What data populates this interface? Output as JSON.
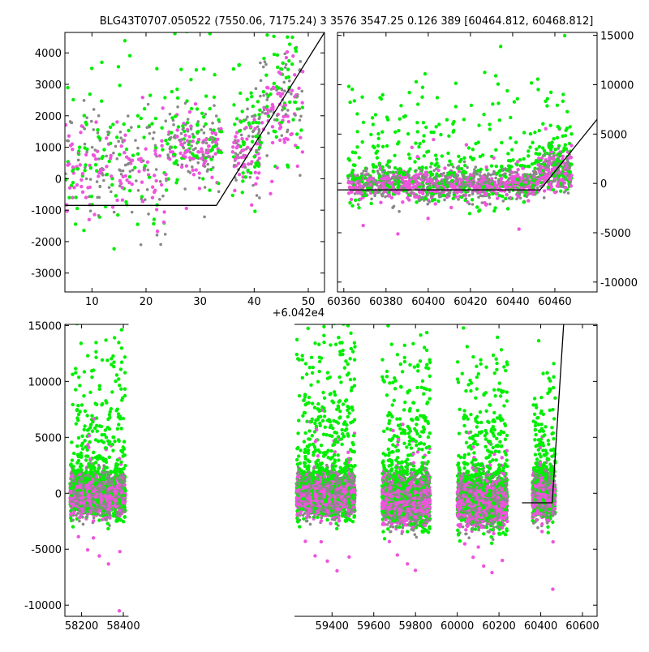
{
  "title": "BLG43T0707.050522 (7550.06, 7175.24)    3 3576 3547.25 0.126 389 [60464.812, 60468.812]",
  "colors": {
    "green": "#00ee00",
    "gray": "#888888",
    "magenta": "#ee55dd",
    "model": "#000000"
  },
  "chart_data": [
    {
      "type": "scatter",
      "panel": "top-left",
      "offset_label": "+6.042e4",
      "xlim": [
        5,
        53
      ],
      "ylim": [
        -3600,
        4650
      ],
      "xticks": [
        10,
        20,
        30,
        40,
        50
      ],
      "yticks": [
        -3000,
        -2000,
        -1000,
        0,
        1000,
        2000,
        3000,
        4000
      ],
      "ytick_side": "left",
      "gap_breaks": [],
      "segments": [
        {
          "x0": 5,
          "x1": 18,
          "mean": 500,
          "spread": 800,
          "outlier": 3000,
          "n": 70
        },
        {
          "x0": 18,
          "x1": 24,
          "mean": 300,
          "spread": 900,
          "outlier": 2800,
          "n": 30
        },
        {
          "x0": 24,
          "x1": 34,
          "mean": 1000,
          "spread": 500,
          "outlier": 2500,
          "n": 80
        },
        {
          "x0": 36,
          "x1": 41,
          "mean": 1000,
          "spread": 700,
          "outlier": 2500,
          "n": 50
        },
        {
          "x0": 41,
          "x1": 49,
          "mean": 2200,
          "spread": 1000,
          "outlier": 2500,
          "n": 60
        }
      ],
      "model_line": [
        [
          5,
          -850
        ],
        [
          33,
          -850
        ],
        [
          53,
          4650
        ]
      ]
    },
    {
      "type": "scatter",
      "panel": "top-right",
      "offset_label": "",
      "xlim": [
        60357,
        60480
      ],
      "ylim": [
        -11000,
        15300
      ],
      "xticks": [
        60360,
        60380,
        60400,
        60420,
        60440,
        60460
      ],
      "yticks": [
        -10000,
        -5000,
        0,
        5000,
        10000,
        15000
      ],
      "ytick_side": "right",
      "gap_breaks": [],
      "segments": [
        {
          "x0": 60362,
          "x1": 60452,
          "mean": 0,
          "spread": 800,
          "outlier": 8000,
          "n": 500
        },
        {
          "x0": 60452,
          "x1": 60468,
          "mean": 1300,
          "spread": 1000,
          "outlier": 6000,
          "n": 120
        }
      ],
      "model_line": [
        [
          60357,
          -650
        ],
        [
          60453,
          -650
        ],
        [
          60480,
          6500
        ]
      ]
    },
    {
      "type": "scatter",
      "panel": "bottom",
      "offset_label": "",
      "xlim": [
        58120,
        60670
      ],
      "ylim": [
        -11000,
        15100
      ],
      "xticks": [
        58200,
        58400,
        59400,
        59600,
        59800,
        60000,
        60200,
        60400,
        60600
      ],
      "yticks": [
        -10000,
        -5000,
        0,
        5000,
        10000,
        15000
      ],
      "ytick_side": "left",
      "gap_breaks": [
        58425,
        59220
      ],
      "segments": [
        {
          "x0": 58145,
          "x1": 58410,
          "mean": 0,
          "spread": 900,
          "outlier": 9000,
          "n": 700
        },
        {
          "x0": 59230,
          "x1": 59510,
          "mean": 0,
          "spread": 900,
          "outlier": 10000,
          "n": 900
        },
        {
          "x0": 59640,
          "x1": 59870,
          "mean": -400,
          "spread": 1100,
          "outlier": 9000,
          "n": 700
        },
        {
          "x0": 60000,
          "x1": 60240,
          "mean": -600,
          "spread": 1100,
          "outlier": 9000,
          "n": 700
        },
        {
          "x0": 60360,
          "x1": 60470,
          "mean": 0,
          "spread": 1000,
          "outlier": 7000,
          "n": 350
        }
      ],
      "model_line": [
        [
          60310,
          -850
        ],
        [
          60455,
          -850
        ],
        [
          60510,
          15100
        ]
      ]
    }
  ]
}
